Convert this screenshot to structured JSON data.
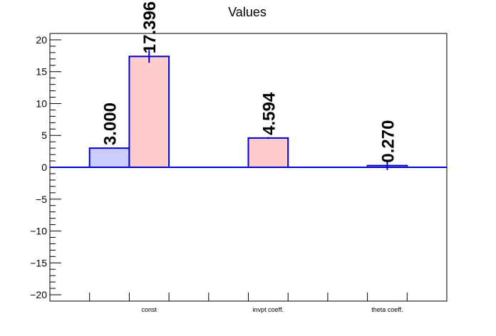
{
  "chart_data": {
    "type": "bar",
    "title": "Values",
    "xlabel": "",
    "ylabel": "",
    "ylim": [
      -21,
      21
    ],
    "grid": false,
    "categories": [
      "const",
      "invpt coeff.",
      "theta coeff."
    ],
    "series": [
      {
        "fill": "#ccccff",
        "stroke": "#0000cc",
        "values": [
          3.0,
          null,
          null
        ],
        "labels": [
          "3.000",
          null,
          null
        ],
        "errors": [
          0,
          null,
          null
        ]
      },
      {
        "fill": "#ffcccc",
        "stroke": "#0000cc",
        "values": [
          17.396,
          4.594,
          0.27
        ],
        "labels": [
          "17.396",
          "4.594",
          "0.270"
        ],
        "errors": [
          1.0,
          0.15,
          0.7
        ]
      }
    ],
    "yticks": [
      -20,
      -15,
      -10,
      -5,
      0,
      5,
      10,
      15,
      20
    ],
    "ytick_labels": [
      "−20",
      "−15",
      "−10",
      "−5",
      "0",
      "5",
      "10",
      "15",
      "20"
    ]
  }
}
